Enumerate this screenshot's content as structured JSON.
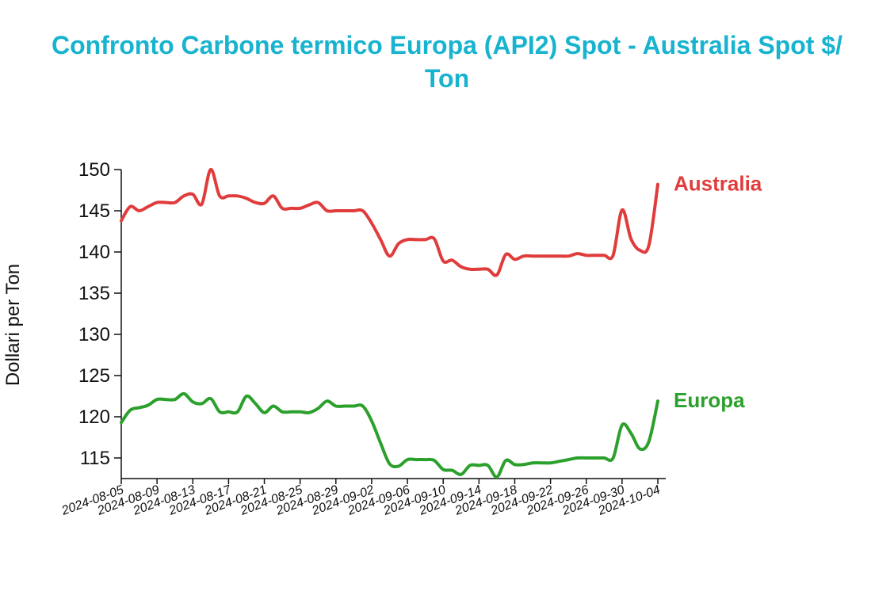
{
  "title": {
    "line1": "Confronto Carbone termico Europa (API2) Spot - Australia Spot $/",
    "line2": "Ton"
  },
  "chart_data": {
    "type": "line",
    "title": "Confronto Carbone termico Europa (API2) Spot - Australia Spot $/ Ton",
    "xlabel": "",
    "ylabel": "Dollari per Ton",
    "ylim": [
      112.5,
      150
    ],
    "yticks": [
      115,
      120,
      125,
      130,
      135,
      140,
      145,
      150
    ],
    "x_range": [
      "2024-08-05",
      "2024-10-04"
    ],
    "xticks": [
      "2024-08-05",
      "2024-08-09",
      "2024-08-13",
      "2024-08-17",
      "2024-08-21",
      "2024-08-25",
      "2024-08-29",
      "2024-09-02",
      "2024-09-06",
      "2024-09-10",
      "2024-09-14",
      "2024-09-18",
      "2024-09-22",
      "2024-09-26",
      "2024-09-30",
      "2024-10-04"
    ],
    "grid": false,
    "legend": "end-of-line labels",
    "series": [
      {
        "name": "Australia",
        "color": "#e03c3c",
        "points": [
          [
            "2024-08-05",
            143.8
          ],
          [
            "2024-08-06",
            145.5
          ],
          [
            "2024-08-07",
            145.0
          ],
          [
            "2024-08-08",
            145.5
          ],
          [
            "2024-08-09",
            146.0
          ],
          [
            "2024-08-10",
            146.0
          ],
          [
            "2024-08-11",
            146.0
          ],
          [
            "2024-08-12",
            146.8
          ],
          [
            "2024-08-13",
            147.0
          ],
          [
            "2024-08-14",
            145.8
          ],
          [
            "2024-08-15",
            150.0
          ],
          [
            "2024-08-16",
            146.8
          ],
          [
            "2024-08-17",
            146.8
          ],
          [
            "2024-08-18",
            146.8
          ],
          [
            "2024-08-19",
            146.5
          ],
          [
            "2024-08-20",
            146.0
          ],
          [
            "2024-08-21",
            145.9
          ],
          [
            "2024-08-22",
            146.8
          ],
          [
            "2024-08-23",
            145.3
          ],
          [
            "2024-08-24",
            145.3
          ],
          [
            "2024-08-25",
            145.3
          ],
          [
            "2024-08-26",
            145.7
          ],
          [
            "2024-08-27",
            146.0
          ],
          [
            "2024-08-28",
            145.0
          ],
          [
            "2024-08-29",
            145.0
          ],
          [
            "2024-08-30",
            145.0
          ],
          [
            "2024-08-31",
            145.0
          ],
          [
            "2024-09-01",
            145.0
          ],
          [
            "2024-09-02",
            143.5
          ],
          [
            "2024-09-03",
            141.5
          ],
          [
            "2024-09-04",
            139.5
          ],
          [
            "2024-09-05",
            141.0
          ],
          [
            "2024-09-06",
            141.5
          ],
          [
            "2024-09-07",
            141.5
          ],
          [
            "2024-09-08",
            141.5
          ],
          [
            "2024-09-09",
            141.6
          ],
          [
            "2024-09-10",
            138.9
          ],
          [
            "2024-09-11",
            139.0
          ],
          [
            "2024-09-12",
            138.2
          ],
          [
            "2024-09-13",
            137.9
          ],
          [
            "2024-09-14",
            137.9
          ],
          [
            "2024-09-15",
            137.9
          ],
          [
            "2024-09-16",
            137.2
          ],
          [
            "2024-09-17",
            139.7
          ],
          [
            "2024-09-18",
            139.1
          ],
          [
            "2024-09-19",
            139.5
          ],
          [
            "2024-09-20",
            139.5
          ],
          [
            "2024-09-21",
            139.5
          ],
          [
            "2024-09-22",
            139.5
          ],
          [
            "2024-09-23",
            139.5
          ],
          [
            "2024-09-24",
            139.5
          ],
          [
            "2024-09-25",
            139.8
          ],
          [
            "2024-09-26",
            139.6
          ],
          [
            "2024-09-27",
            139.6
          ],
          [
            "2024-09-28",
            139.6
          ],
          [
            "2024-09-29",
            139.6
          ],
          [
            "2024-09-30",
            145.1
          ],
          [
            "2024-10-01",
            141.6
          ],
          [
            "2024-10-02",
            140.2
          ],
          [
            "2024-10-03",
            140.8
          ],
          [
            "2024-10-04",
            148.2
          ]
        ]
      },
      {
        "name": "Europa",
        "color": "#2ca02c",
        "points": [
          [
            "2024-08-05",
            119.3
          ],
          [
            "2024-08-06",
            120.8
          ],
          [
            "2024-08-07",
            121.1
          ],
          [
            "2024-08-08",
            121.4
          ],
          [
            "2024-08-09",
            122.1
          ],
          [
            "2024-08-10",
            122.1
          ],
          [
            "2024-08-11",
            122.1
          ],
          [
            "2024-08-12",
            122.8
          ],
          [
            "2024-08-13",
            121.8
          ],
          [
            "2024-08-14",
            121.6
          ],
          [
            "2024-08-15",
            122.2
          ],
          [
            "2024-08-16",
            120.6
          ],
          [
            "2024-08-17",
            120.6
          ],
          [
            "2024-08-18",
            120.6
          ],
          [
            "2024-08-19",
            122.5
          ],
          [
            "2024-08-20",
            121.6
          ],
          [
            "2024-08-21",
            120.5
          ],
          [
            "2024-08-22",
            121.3
          ],
          [
            "2024-08-23",
            120.6
          ],
          [
            "2024-08-24",
            120.6
          ],
          [
            "2024-08-25",
            120.6
          ],
          [
            "2024-08-26",
            120.5
          ],
          [
            "2024-08-27",
            121.0
          ],
          [
            "2024-08-28",
            121.9
          ],
          [
            "2024-08-29",
            121.3
          ],
          [
            "2024-08-30",
            121.3
          ],
          [
            "2024-08-31",
            121.3
          ],
          [
            "2024-09-01",
            121.3
          ],
          [
            "2024-09-02",
            119.5
          ],
          [
            "2024-09-03",
            116.8
          ],
          [
            "2024-09-04",
            114.3
          ],
          [
            "2024-09-05",
            114.0
          ],
          [
            "2024-09-06",
            114.8
          ],
          [
            "2024-09-07",
            114.8
          ],
          [
            "2024-09-08",
            114.8
          ],
          [
            "2024-09-09",
            114.7
          ],
          [
            "2024-09-10",
            113.6
          ],
          [
            "2024-09-11",
            113.5
          ],
          [
            "2024-09-12",
            113.0
          ],
          [
            "2024-09-13",
            114.1
          ],
          [
            "2024-09-14",
            114.1
          ],
          [
            "2024-09-15",
            114.1
          ],
          [
            "2024-09-16",
            112.7
          ],
          [
            "2024-09-17",
            114.7
          ],
          [
            "2024-09-18",
            114.2
          ],
          [
            "2024-09-19",
            114.2
          ],
          [
            "2024-09-20",
            114.4
          ],
          [
            "2024-09-21",
            114.4
          ],
          [
            "2024-09-22",
            114.4
          ],
          [
            "2024-09-23",
            114.6
          ],
          [
            "2024-09-24",
            114.8
          ],
          [
            "2024-09-25",
            115.0
          ],
          [
            "2024-09-26",
            115.0
          ],
          [
            "2024-09-27",
            115.0
          ],
          [
            "2024-09-28",
            115.0
          ],
          [
            "2024-09-29",
            115.0
          ],
          [
            "2024-09-30",
            119.0
          ],
          [
            "2024-10-01",
            118.0
          ],
          [
            "2024-10-02",
            116.1
          ],
          [
            "2024-10-03",
            117.0
          ],
          [
            "2024-10-04",
            121.9
          ]
        ]
      }
    ]
  }
}
